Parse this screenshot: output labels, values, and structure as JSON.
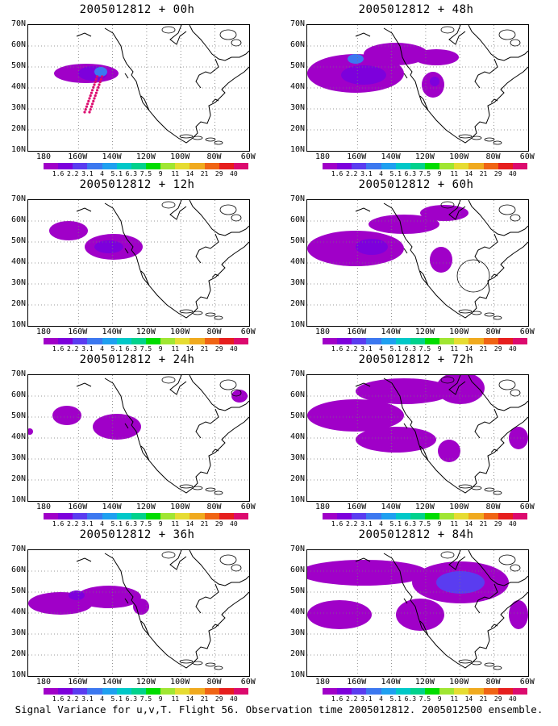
{
  "caption": "Signal Variance for u,v,T. Flight 56. Observation time 2005012812. 2005012500 ensemble.",
  "lat_labels": [
    "70N",
    "60N",
    "50N",
    "40N",
    "30N",
    "20N",
    "10N"
  ],
  "lon_labels": [
    "180",
    "160W",
    "140W",
    "120W",
    "100W",
    "80W",
    "60W"
  ],
  "colorbar": {
    "labels": [
      "1.6",
      "2.2",
      "3.1",
      "4",
      "5.1",
      "6.3",
      "7.5",
      "9",
      "11",
      "14",
      "21",
      "29",
      "40"
    ],
    "colors": [
      "#a000c8",
      "#7d00dc",
      "#5a3cf0",
      "#3c78f0",
      "#1ea0f0",
      "#00c8c8",
      "#00d28c",
      "#00dc00",
      "#a0e632",
      "#e6dc32",
      "#f0aa1e",
      "#f06414",
      "#e61e1e",
      "#dc0a6e"
    ]
  },
  "panels": [
    {
      "id": "p00",
      "title": "2005012812 + 00h"
    },
    {
      "id": "p48",
      "title": "2005012812 + 48h"
    },
    {
      "id": "p12",
      "title": "2005012812 + 12h"
    },
    {
      "id": "p60",
      "title": "2005012812 + 60h"
    },
    {
      "id": "p24",
      "title": "2005012812 + 24h"
    },
    {
      "id": "p72",
      "title": "2005012812 + 72h"
    },
    {
      "id": "p36",
      "title": "2005012812 + 36h"
    },
    {
      "id": "p84",
      "title": "2005012812 + 84h"
    }
  ]
}
